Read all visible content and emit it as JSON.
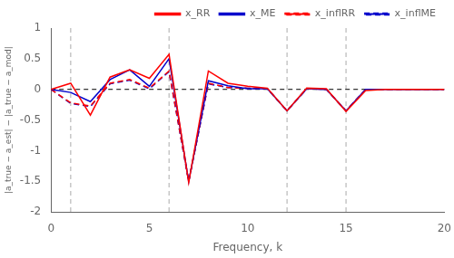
{
  "chart_data": {
    "type": "line",
    "x": [
      0,
      1,
      2,
      3,
      4,
      5,
      6,
      7,
      8,
      9,
      10,
      11,
      12,
      13,
      14,
      15,
      16,
      17,
      18,
      19,
      20
    ],
    "series": [
      {
        "name": "x_RR",
        "color": "#ff0000",
        "line_style": "solid",
        "values": [
          0,
          0.1,
          -0.42,
          0.2,
          0.32,
          0.18,
          0.57,
          -1.52,
          0.3,
          0.1,
          0.05,
          0.02,
          -0.35,
          0.02,
          0.01,
          -0.36,
          -0.02,
          0.0,
          0.0,
          0.0,
          0.0
        ]
      },
      {
        "name": "x_ME",
        "color": "#0000cc",
        "line_style": "solid",
        "values": [
          0,
          -0.05,
          -0.2,
          0.16,
          0.32,
          0.05,
          0.5,
          -1.5,
          0.14,
          0.06,
          0.01,
          0.01,
          -0.35,
          0.01,
          0.0,
          -0.35,
          0.0,
          0.0,
          0.0,
          0.0,
          0.0
        ]
      },
      {
        "name": "x_inflRR",
        "color": "#ff0000",
        "line_style": "dashed",
        "values": [
          0,
          -0.22,
          -0.27,
          0.1,
          0.16,
          0.02,
          0.3,
          -1.5,
          0.1,
          0.03,
          0.02,
          0.01,
          -0.35,
          0.01,
          0.0,
          -0.35,
          0.0,
          0.0,
          0.0,
          0.0,
          0.0
        ]
      },
      {
        "name": "x_inflME",
        "color": "#0000cc",
        "line_style": "dashed",
        "values": [
          0,
          -0.23,
          -0.28,
          0.09,
          0.15,
          0.01,
          0.29,
          -1.5,
          0.09,
          0.03,
          0.02,
          0.01,
          -0.35,
          0.01,
          0.0,
          -0.35,
          0.0,
          0.0,
          0.0,
          0.0,
          0.0
        ]
      }
    ],
    "vlines": [
      1,
      6,
      12,
      15
    ],
    "hlines": [
      0
    ],
    "xlabel": "Frequency, k",
    "ylabel": "|a_true − a_est| − |a_true − a_mod|",
    "xlim": [
      0,
      20
    ],
    "xticks": [
      0,
      5,
      10,
      15,
      20
    ],
    "ylim": [
      -2,
      1
    ],
    "yticks": [
      -2,
      -1.5,
      -1,
      -0.5,
      0,
      0.5,
      1
    ],
    "grid": false,
    "legend": "upper right"
  }
}
